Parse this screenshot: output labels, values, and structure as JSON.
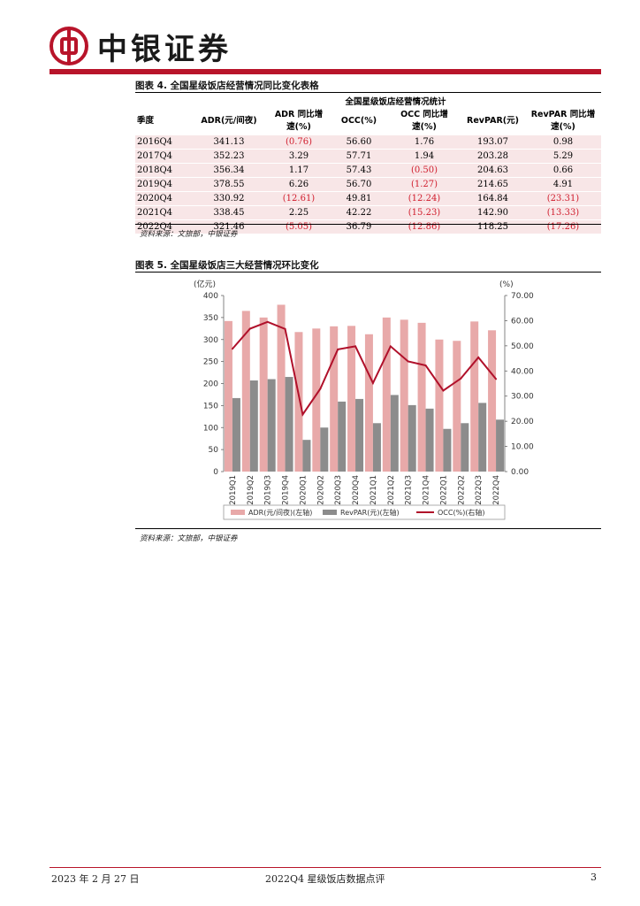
{
  "header": {
    "logo_text": "中银证券"
  },
  "table_section": {
    "title": "图表 4. 全国星级饭店经营情况同比变化表格",
    "group_header": "全国星级饭店经营情况统计",
    "columns": [
      "季度",
      "ADR(元/间夜)",
      "ADR 同比增速(%)",
      "OCC(%)",
      "OCC 同比增速(%)",
      "RevPAR(元)",
      "RevPAR 同比增速(%)"
    ],
    "columns_display": [
      [
        "季度"
      ],
      [
        "ADR(元/间夜)"
      ],
      [
        "ADR 同比增",
        "速(%)"
      ],
      [
        "OCC(%)"
      ],
      [
        "OCC 同比增",
        "速(%)"
      ],
      [
        "RevPAR(元)"
      ],
      [
        "RevPAR 同比增",
        "速(%)"
      ]
    ],
    "rows": [
      [
        "2016Q4",
        "341.13",
        "(0.76)",
        "56.60",
        "1.76",
        "193.07",
        "0.98"
      ],
      [
        "2017Q4",
        "352.23",
        "3.29",
        "57.71",
        "1.94",
        "203.28",
        "5.29"
      ],
      [
        "2018Q4",
        "356.34",
        "1.17",
        "57.43",
        "(0.50)",
        "204.63",
        "0.66"
      ],
      [
        "2019Q4",
        "378.55",
        "6.26",
        "56.70",
        "(1.27)",
        "214.65",
        "4.91"
      ],
      [
        "2020Q4",
        "330.92",
        "(12.61)",
        "49.81",
        "(12.24)",
        "164.84",
        "(23.31)"
      ],
      [
        "2021Q4",
        "338.45",
        "2.25",
        "42.22",
        "(15.23)",
        "142.90",
        "(13.33)"
      ],
      [
        "2022Q4",
        "321.46",
        "(5.05)",
        "36.79",
        "(12.86)",
        "118.25",
        "(17.26)"
      ]
    ],
    "source": "资料来源：文旅部，中银证券"
  },
  "chart_section": {
    "title": "图表 5. 全国星级饭店三大经营情况环比变化",
    "source": "资料来源：文旅部，中银证券"
  },
  "chart_data": {
    "type": "bar",
    "left_unit": "(亿元)",
    "right_unit": "(%)",
    "categories": [
      "2019Q1",
      "2019Q2",
      "2019Q3",
      "2019Q4",
      "2020Q1",
      "2020Q2",
      "2020Q3",
      "2020Q4",
      "2021Q1",
      "2021Q2",
      "2021Q3",
      "2021Q4",
      "2022Q1",
      "2022Q2",
      "2022Q3",
      "2022Q4"
    ],
    "left_ylim": [
      0,
      400
    ],
    "left_ticks": [
      "0",
      "50",
      "100",
      "150",
      "200",
      "250",
      "300",
      "350",
      "400"
    ],
    "right_ylim": [
      0,
      70
    ],
    "right_ticks": [
      "0.00",
      "10.00",
      "20.00",
      "30.00",
      "40.00",
      "50.00",
      "60.00",
      "70.00"
    ],
    "series": [
      {
        "name": "ADR(元/间夜)(左轴)",
        "type": "bar",
        "axis": "left",
        "color": "#e8a9a9",
        "values": [
          342,
          365,
          350,
          379,
          317,
          325,
          330,
          331,
          312,
          350,
          345,
          338,
          300,
          297,
          341,
          321
        ]
      },
      {
        "name": "RevPAR(元)(左轴)",
        "type": "bar",
        "axis": "left",
        "color": "#8c8c8c",
        "values": [
          167,
          207,
          210,
          215,
          72,
          100,
          159,
          165,
          110,
          174,
          151,
          143,
          97,
          110,
          156,
          118
        ]
      },
      {
        "name": "OCC(%)(右轴)",
        "type": "line",
        "axis": "right",
        "color": "#b0102a",
        "values": [
          48.8,
          56.8,
          59.5,
          56.7,
          22.7,
          32.9,
          48.6,
          49.8,
          35.2,
          49.8,
          43.8,
          42.2,
          32.2,
          37.0,
          45.4,
          36.8
        ]
      }
    ],
    "legend_position": "bottom",
    "grid": false
  },
  "footer": {
    "date": "2023 年 2 月 27 日",
    "doc_title": "2022Q4 星级饭店数据点评",
    "page": "3"
  }
}
